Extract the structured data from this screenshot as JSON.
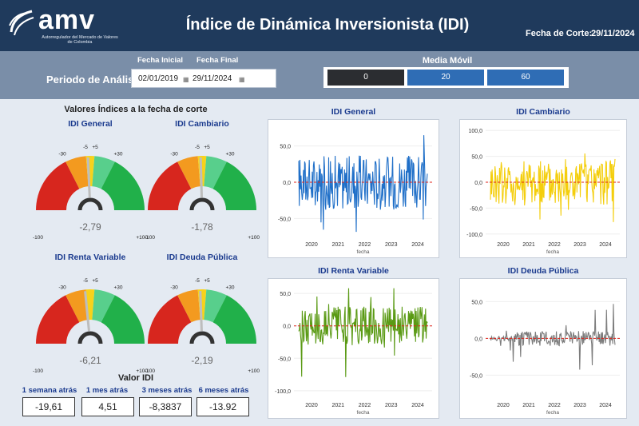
{
  "header": {
    "logo_text": "amv",
    "logo_sub": "Autorregulador del Mercado de Valores de Colombia",
    "title": "Índice de Dinámica Inversionista (IDI)",
    "cutoff_label": "Fecha de Corte:",
    "cutoff_value": "29/11/2024"
  },
  "filters": {
    "period_label": "Periodo de Análisis",
    "start_label": "Fecha Inicial",
    "end_label": "Fecha Final",
    "start_value": "02/01/2019",
    "end_value": "29/11/2024",
    "moving_avg_label": "Media Móvil",
    "moving_avg_options": [
      "0",
      "20",
      "60"
    ],
    "moving_avg_selected": "0",
    "colors": {
      "selected": "#2b2d31",
      "option": "#2f6db5"
    }
  },
  "gauges": {
    "section_title": "Valores Índices a la fecha de corte",
    "scale_labels": [
      "-100",
      "-30",
      "-5",
      "+5",
      "+30",
      "+100"
    ],
    "items": [
      {
        "title": "IDI General",
        "value_text": "-2,79",
        "value": -2.79
      },
      {
        "title": "IDI Cambiario",
        "value_text": "-1,78",
        "value": -1.78
      },
      {
        "title": "IDI Renta Variable",
        "value_text": "-6,21",
        "value": -6.21
      },
      {
        "title": "IDI Deuda Pública",
        "value_text": "-2,19",
        "value": -2.19
      }
    ],
    "colors": {
      "red": "#d7261e",
      "orange": "#f39a1f",
      "yellow": "#f7d21b",
      "lightgreen": "#58cf8c",
      "green": "#21b04a",
      "needle": "#bdbdbd"
    }
  },
  "history": {
    "title": "Valor IDI",
    "items": [
      {
        "label": "1 semana atrás",
        "value": "-19,61"
      },
      {
        "label": "1 mes atrás",
        "value": "4,51"
      },
      {
        "label": "3 meses atrás",
        "value": "-8,3837"
      },
      {
        "label": "6 meses atrás",
        "value": "-13.92"
      }
    ]
  },
  "chart_data": [
    {
      "type": "line",
      "title": "IDI General",
      "xlabel": "fecha",
      "ylabel": "",
      "x_ticks": [
        "2020",
        "2021",
        "2022",
        "2023",
        "2024"
      ],
      "y_ticks": [
        "50,0",
        "0,0",
        "-50,0"
      ],
      "y_tick_values": [
        50,
        0,
        -50
      ],
      "ylim": [
        -75,
        75
      ],
      "color": "#1f6fc8",
      "amplitude": 38,
      "spike": 70
    },
    {
      "type": "line",
      "title": "IDI Cambiario",
      "xlabel": "fecha",
      "ylabel": "",
      "x_ticks": [
        "2020",
        "2021",
        "2022",
        "2023",
        "2024"
      ],
      "y_ticks": [
        "100,0",
        "50,0",
        "0,0",
        "-50,0",
        "-100,0"
      ],
      "y_tick_values": [
        100,
        50,
        0,
        -50,
        -100
      ],
      "ylim": [
        -105,
        105
      ],
      "color": "#f4ce0c",
      "amplitude": 45,
      "spike": 95
    },
    {
      "type": "line",
      "title": "IDI Renta Variable",
      "xlabel": "fecha",
      "ylabel": "",
      "x_ticks": [
        "2020",
        "2021",
        "2022",
        "2023",
        "2024"
      ],
      "y_ticks": [
        "50,0",
        "0,0",
        "-50,0",
        "-100,0"
      ],
      "y_tick_values": [
        50,
        0,
        -50,
        -100
      ],
      "ylim": [
        -110,
        60
      ],
      "color": "#5a9a14",
      "amplitude": 30,
      "spike": 85
    },
    {
      "type": "line",
      "title": "IDI Deuda Pública",
      "xlabel": "fecha",
      "ylabel": "",
      "x_ticks": [
        "2020",
        "2021",
        "2022",
        "2023",
        "2024"
      ],
      "y_ticks": [
        "50,0",
        "0,0",
        "-50,0"
      ],
      "y_tick_values": [
        50,
        0,
        -50
      ],
      "ylim": [
        -80,
        70
      ],
      "color": "#7d7d7d",
      "amplitude": 10,
      "spike": 55
    }
  ]
}
